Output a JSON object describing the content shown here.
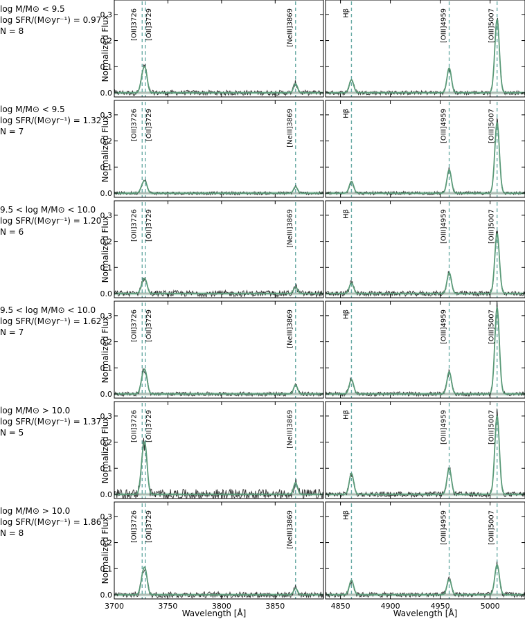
{
  "colors": {
    "fit": "#5a9a78",
    "data": "#333333",
    "marker": "#6aaba6",
    "band": "#bcd8c8",
    "axis": "#000000"
  },
  "panel_labels": [
    [
      "log M/M⊙ < 9.5",
      "log SFR/(M⊙yr⁻¹) = 0.97",
      "N = 8"
    ],
    [
      "log M/M⊙ < 9.5",
      "log SFR/(M⊙yr⁻¹) = 1.32",
      "N = 7"
    ],
    [
      "9.5 < log M/M⊙ < 10.0",
      "log SFR/(M⊙yr⁻¹) = 1.20",
      "N = 6"
    ],
    [
      "9.5 < log M/M⊙ < 10.0",
      "log SFR/(M⊙yr⁻¹) = 1.62",
      "N = 7"
    ],
    [
      "log M/M⊙ > 10.0",
      "log SFR/(M⊙yr⁻¹) = 1.37",
      "N = 5"
    ],
    [
      "log M/M⊙ > 10.0",
      "log SFR/(M⊙yr⁻¹) = 1.86",
      "N = 8"
    ]
  ],
  "chart_data": {
    "type": "line",
    "ylabel": "Normalized Flux",
    "xlabel": "Wavelength [Å]",
    "ylim": [
      0,
      0.35
    ],
    "yticks": [
      0.0,
      0.1,
      0.2,
      0.3
    ],
    "ytick_labels": [
      "0.0",
      "0.1",
      "0.2",
      "0.3"
    ],
    "grid": false,
    "left": {
      "xlim": [
        3700,
        3895
      ],
      "xticks": [
        3700,
        3750,
        3800,
        3850
      ],
      "xtick_labels": [
        "3700",
        "3750",
        "3800",
        "3850"
      ],
      "lines": [
        {
          "label": "[OII]3726",
          "x": 3726
        },
        {
          "label": "[OII]3729",
          "x": 3729
        },
        {
          "label": "[NeIII]3869",
          "x": 3869
        }
      ]
    },
    "right": {
      "xlim": [
        4835,
        5035
      ],
      "xticks": [
        4850,
        4900,
        4950,
        5000
      ],
      "xtick_labels": [
        "4850",
        "4900",
        "4950",
        "5000"
      ],
      "lines": [
        {
          "label": "Hβ",
          "x": 4861
        },
        {
          "label": "[OIII]4959",
          "x": 4959
        },
        {
          "label": "[OIII]5007",
          "x": 5007
        }
      ]
    },
    "rows": [
      {
        "left": {
          "oii": 0.095,
          "neiii": 0.035,
          "noise": 0.01
        },
        "right": {
          "hb": 0.05,
          "o4959": 0.095,
          "o5007": 0.28,
          "noise": 0.008
        }
      },
      {
        "left": {
          "oii": 0.045,
          "neiii": 0.025,
          "noise": 0.006
        },
        "right": {
          "hb": 0.045,
          "o4959": 0.09,
          "o5007": 0.27,
          "noise": 0.006
        }
      },
      {
        "left": {
          "oii": 0.055,
          "neiii": 0.025,
          "noise": 0.012
        },
        "right": {
          "hb": 0.04,
          "o4959": 0.08,
          "o5007": 0.23,
          "noise": 0.01
        }
      },
      {
        "left": {
          "oii": 0.09,
          "neiii": 0.035,
          "noise": 0.008
        },
        "right": {
          "hb": 0.055,
          "o4959": 0.085,
          "o5007": 0.33,
          "noise": 0.008
        }
      },
      {
        "left": {
          "oii": 0.19,
          "neiii": 0.045,
          "noise": 0.02
        },
        "right": {
          "hb": 0.08,
          "o4959": 0.1,
          "o5007": 0.3,
          "noise": 0.01
        }
      },
      {
        "left": {
          "oii": 0.1,
          "neiii": 0.025,
          "noise": 0.012
        },
        "right": {
          "hb": 0.055,
          "o4959": 0.06,
          "o5007": 0.115,
          "noise": 0.01
        }
      }
    ]
  }
}
